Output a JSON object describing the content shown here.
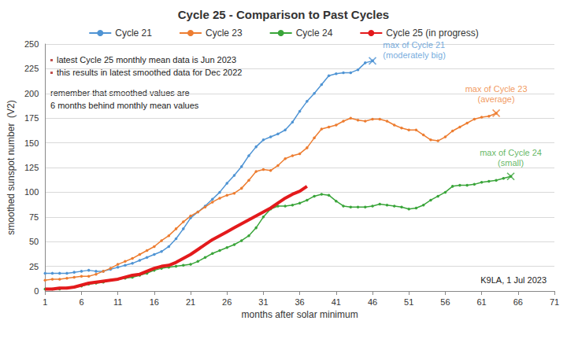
{
  "chart_data": {
    "type": "line",
    "title": "Cycle 25 - Comparison to Past Cycles",
    "xlabel": "months after solar minimum",
    "ylabel": "smoothed sunspot number  (V2)",
    "x": [
      1,
      2,
      3,
      4,
      5,
      6,
      7,
      8,
      9,
      10,
      11,
      12,
      13,
      14,
      15,
      16,
      17,
      18,
      19,
      20,
      21,
      22,
      23,
      24,
      25,
      26,
      27,
      28,
      29,
      30,
      31,
      32,
      33,
      34,
      35,
      36,
      37,
      38,
      39,
      40,
      41,
      42,
      43,
      44,
      45,
      46,
      47,
      48,
      49,
      50,
      51,
      52,
      53,
      54,
      55,
      56,
      57,
      58,
      59,
      60,
      61,
      62,
      63,
      64,
      65,
      66,
      67,
      68,
      69,
      70,
      71
    ],
    "series": [
      {
        "name": "Cycle 21",
        "color": "#4f94d4",
        "marker": "circle",
        "line_style": "solid",
        "values": [
          18,
          18,
          18,
          18,
          19,
          20,
          21,
          20,
          20,
          22,
          24,
          26,
          28,
          31,
          34,
          37,
          40,
          45,
          53,
          63,
          74,
          80,
          86,
          93,
          100,
          109,
          117,
          126,
          137,
          146,
          153,
          156,
          159,
          163,
          171,
          182,
          192,
          200,
          209,
          218,
          220,
          221,
          221,
          224,
          231,
          233,
          null,
          null,
          null,
          null,
          null,
          null,
          null,
          null,
          null,
          null,
          null,
          null,
          null,
          null,
          null,
          null,
          null,
          null,
          null,
          null,
          null,
          null,
          null,
          null,
          null
        ]
      },
      {
        "name": "Cycle 23",
        "color": "#ed7d31",
        "marker": "circle",
        "line_style": "solid",
        "values": [
          11,
          12,
          12,
          13,
          14,
          15,
          15,
          17,
          20,
          23,
          27,
          30,
          33,
          37,
          41,
          45,
          51,
          56,
          63,
          70,
          76,
          80,
          85,
          90,
          94,
          97,
          99,
          104,
          112,
          121,
          123,
          122,
          127,
          134,
          137,
          139,
          145,
          155,
          164,
          166,
          168,
          172,
          175,
          173,
          172,
          174,
          174,
          172,
          168,
          165,
          163,
          163,
          158,
          153,
          152,
          156,
          162,
          166,
          170,
          174,
          176,
          177,
          180,
          null,
          null,
          null,
          null,
          null,
          null,
          null,
          null
        ]
      },
      {
        "name": "Cycle 24",
        "color": "#3aa53a",
        "marker": "circle",
        "line_style": "solid",
        "values": [
          2,
          2,
          2,
          3,
          4,
          5,
          7,
          8,
          9,
          11,
          12,
          13,
          14,
          16,
          18,
          21,
          23,
          24,
          25,
          26,
          27,
          30,
          34,
          38,
          41,
          44,
          47,
          51,
          56,
          64,
          75,
          83,
          86,
          86,
          87,
          89,
          92,
          96,
          98,
          97,
          91,
          86,
          85,
          85,
          85,
          86,
          88,
          87,
          86,
          85,
          83,
          84,
          87,
          92,
          96,
          100,
          106,
          107,
          107,
          108,
          110,
          111,
          112,
          114,
          116,
          null,
          null,
          null,
          null,
          null,
          null
        ]
      },
      {
        "name": "Cycle 25 (in progress)",
        "color": "#e31a1c",
        "marker": "none",
        "line_style": "solid",
        "values": [
          2,
          2,
          3,
          3,
          4,
          6,
          8,
          9,
          10,
          11,
          12,
          14,
          16,
          17,
          20,
          23,
          25,
          26,
          29,
          33,
          37,
          42,
          47,
          52,
          56,
          60,
          64,
          68,
          72,
          76,
          80,
          84,
          89,
          94,
          98,
          101,
          106,
          null,
          null,
          null,
          null,
          null,
          null,
          null,
          null,
          null,
          null,
          null,
          null,
          null,
          null,
          null,
          null,
          null,
          null,
          null,
          null,
          null,
          null,
          null,
          null,
          null,
          null,
          null,
          null,
          null,
          null,
          null,
          null,
          null,
          null
        ]
      }
    ],
    "xlim": [
      1,
      71
    ],
    "xticks": [
      1,
      6,
      11,
      16,
      21,
      26,
      31,
      36,
      41,
      46,
      51,
      56,
      61,
      66,
      71
    ],
    "ylim": [
      0,
      250
    ],
    "yticks": [
      0,
      25,
      50,
      75,
      100,
      125,
      150,
      175,
      200,
      225,
      250
    ],
    "grid": true,
    "legend": "top",
    "notes": [
      "latest Cycle 25 monthly mean data is Jun 2023",
      "this results in latest smoothed data for Dec 2022"
    ],
    "remark": [
      "remember that smoothed values are",
      "6 months behind monthly mean values"
    ],
    "credit": "K9LA, 1 Jul 2023",
    "annotations": [
      {
        "text": [
          "max of Cycle 21",
          "(moderately big)"
        ],
        "x": 46,
        "y": 233,
        "color": "#4f94d4",
        "marker": "x"
      },
      {
        "text": [
          "max of Cycle 23",
          "(average)"
        ],
        "x": 63,
        "y": 180,
        "color": "#ed7d31",
        "marker": "x"
      },
      {
        "text": [
          "max of Cycle 24",
          "(small)"
        ],
        "x": 65,
        "y": 116,
        "color": "#3aa53a",
        "marker": "x"
      }
    ]
  }
}
